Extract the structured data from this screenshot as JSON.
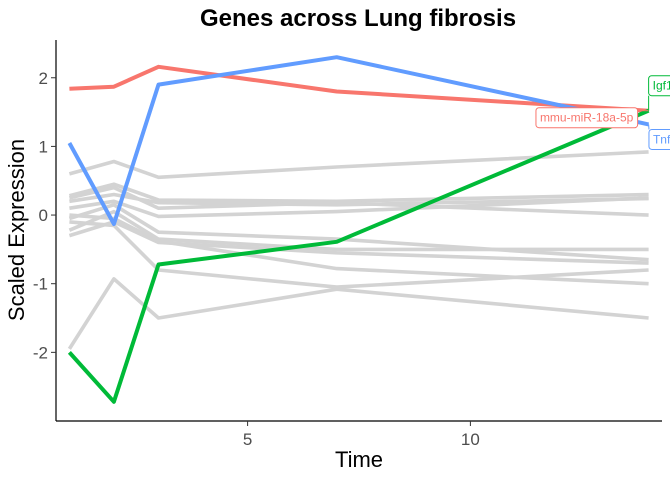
{
  "chart_data": {
    "type": "line",
    "title": "Genes across Lung fibrosis",
    "xlabel": "Time",
    "ylabel": "Scaled Expression",
    "xlim": [
      0.7,
      14.3
    ],
    "ylim": [
      -3.0,
      2.55
    ],
    "x_ticks": [
      5,
      10
    ],
    "y_ticks": [
      -2,
      -1,
      0,
      1,
      2
    ],
    "grid": false,
    "legend": "none",
    "background_color": "#d3d3d3",
    "x": [
      1,
      2,
      3,
      7,
      14
    ],
    "background_series": [
      {
        "values": [
          0.6,
          0.78,
          0.55,
          0.7,
          0.92
        ]
      },
      {
        "values": [
          0.28,
          0.45,
          0.22,
          0.2,
          0.3
        ]
      },
      {
        "values": [
          0.2,
          0.3,
          0.18,
          0.15,
          0.24
        ]
      },
      {
        "values": [
          0.25,
          0.4,
          0.1,
          0.18,
          0.0
        ]
      },
      {
        "values": [
          0.1,
          0.2,
          -0.02,
          0.05,
          0.25
        ]
      },
      {
        "values": [
          -0.05,
          0.15,
          -0.25,
          -0.35,
          -0.65
        ]
      },
      {
        "values": [
          -0.22,
          0.05,
          -0.35,
          -0.5,
          -0.5
        ]
      },
      {
        "values": [
          -0.3,
          -0.1,
          -0.4,
          -0.55,
          -0.7
        ]
      },
      {
        "values": [
          0.0,
          -0.05,
          -0.38,
          -0.78,
          -1.0
        ]
      },
      {
        "values": [
          -0.1,
          -0.15,
          -0.8,
          -1.05,
          -0.8
        ]
      },
      {
        "values": [
          -1.95,
          -0.93,
          -1.5,
          -1.08,
          -1.5
        ]
      }
    ],
    "series": [
      {
        "name": "mmu-miR-18a-5p",
        "color": "#F8766D",
        "values": [
          1.84,
          1.87,
          2.16,
          1.8,
          1.52
        ]
      },
      {
        "name": "Igf1",
        "color": "#00BA38",
        "values": [
          -2.0,
          -2.72,
          -0.72,
          -0.39,
          1.52
        ]
      },
      {
        "name": "Tnf",
        "color": "#619CFF",
        "values": [
          1.05,
          -0.13,
          1.9,
          2.3,
          1.32
        ]
      }
    ]
  }
}
